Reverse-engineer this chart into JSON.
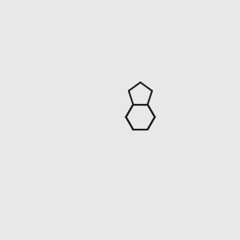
{
  "bg_color": "#e8e8e8",
  "bond_color": "#1a1a1a",
  "oxygen_color": "#ff2200",
  "nitrogen_color": "#0000cc",
  "lw": 1.5,
  "fs_label": 7.5
}
